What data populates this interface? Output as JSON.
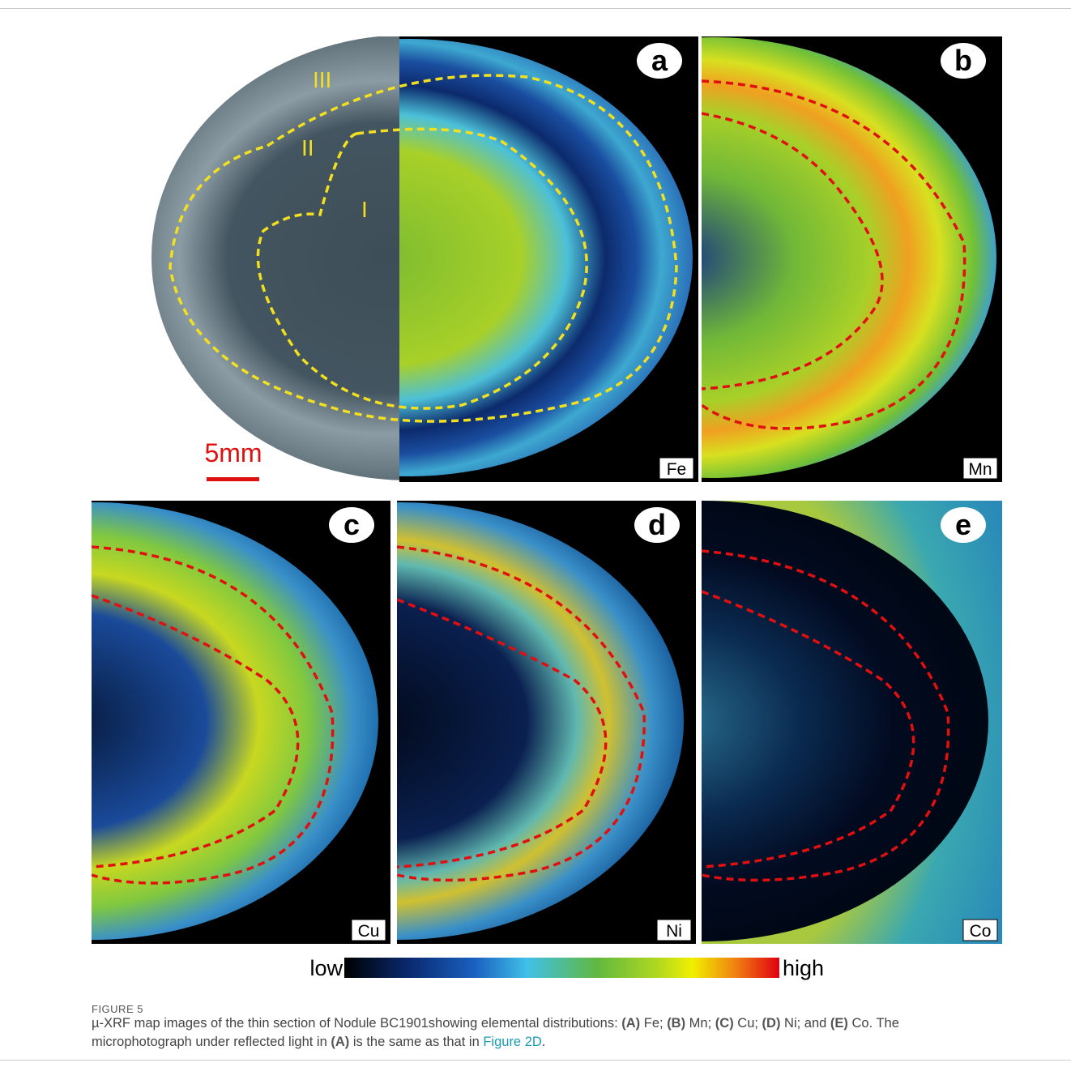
{
  "zones": [
    "III",
    "II",
    "I"
  ],
  "scale_bar": "5mm",
  "panels": [
    {
      "letter": "a",
      "element": "Fe"
    },
    {
      "letter": "b",
      "element": "Mn"
    },
    {
      "letter": "c",
      "element": "Cu"
    },
    {
      "letter": "d",
      "element": "Ni"
    },
    {
      "letter": "e",
      "element": "Co"
    }
  ],
  "color_bar": {
    "low": "low",
    "high": "high"
  },
  "caption": {
    "label": "FIGURE 5",
    "parts": [
      {
        "text": "µ-XRF map images of the thin section of Nodule BC1901showing elemental distributions: "
      },
      {
        "text": "(A)",
        "style": "bold"
      },
      {
        "text": " Fe; "
      },
      {
        "text": "(B)",
        "style": "bold"
      },
      {
        "text": " Mn; "
      },
      {
        "text": "(C)",
        "style": "bold"
      },
      {
        "text": " Cu; "
      },
      {
        "text": "(D)",
        "style": "bold"
      },
      {
        "text": " Ni; and "
      },
      {
        "text": "(E)",
        "style": "bold"
      },
      {
        "text": " Co. The microphotograph under reflected light in "
      },
      {
        "text": "(A)",
        "style": "bold"
      },
      {
        "text": " is the same as that in "
      },
      {
        "text": "Figure 2D",
        "style": "link"
      },
      {
        "text": "."
      }
    ]
  }
}
